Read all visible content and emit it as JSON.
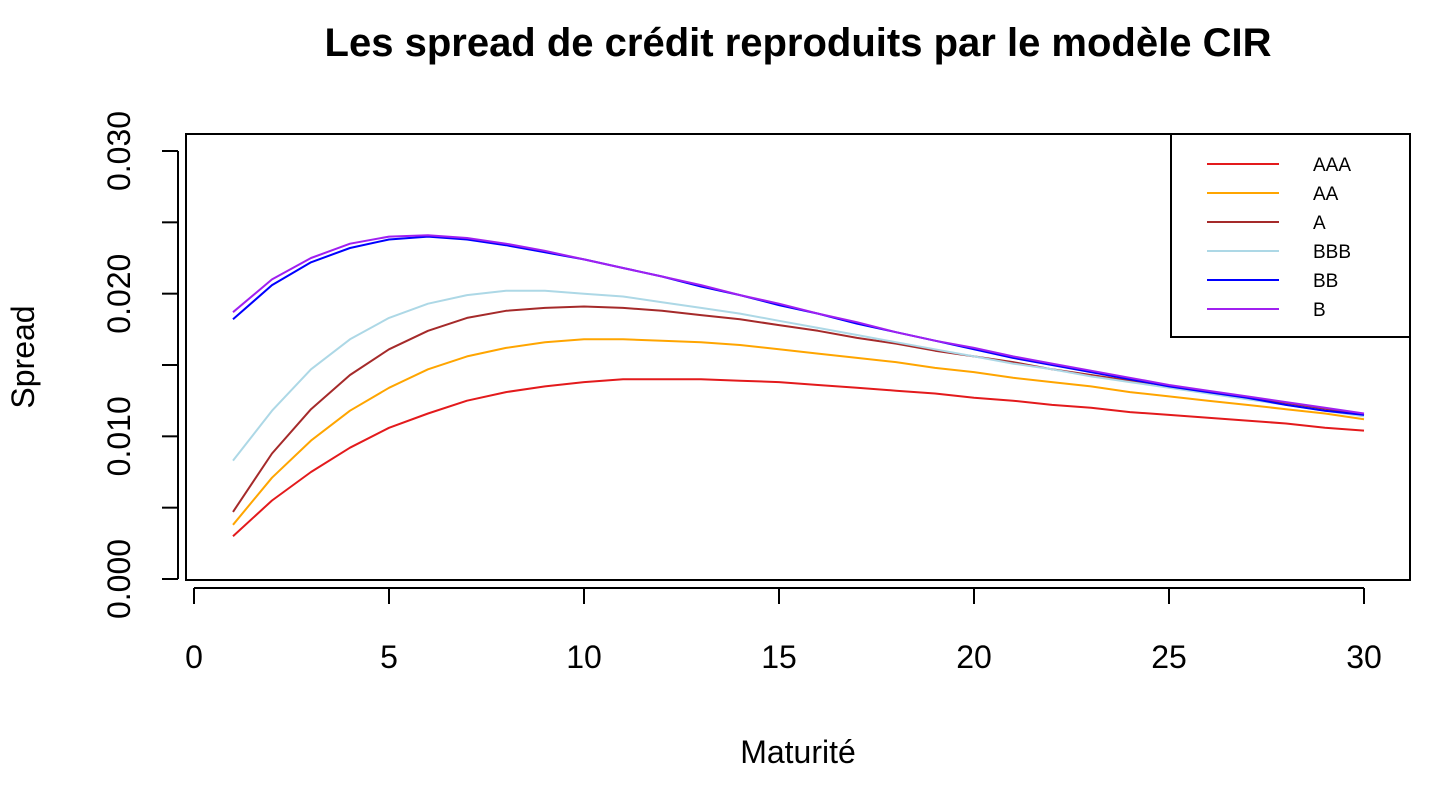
{
  "chart_data": {
    "type": "line",
    "title": "Les spread de crédit reproduits par le modèle CIR",
    "xlabel": "Maturité",
    "ylabel": "Spread",
    "xlim": [
      0,
      30
    ],
    "ylim": [
      0,
      0.03
    ],
    "x_ticks": [
      0,
      5,
      10,
      15,
      20,
      25,
      30
    ],
    "x_tick_labels": [
      "0",
      "5",
      "10",
      "15",
      "20",
      "25",
      "30"
    ],
    "y_ticks": [
      0,
      0.005,
      0.01,
      0.015,
      0.02,
      0.025,
      0.03
    ],
    "y_tick_labels": [
      "0.000",
      "",
      "0.010",
      "",
      "0.020",
      "",
      "0.030"
    ],
    "grid": false,
    "legend_position": "top-right",
    "x": [
      1,
      2,
      3,
      4,
      5,
      6,
      7,
      8,
      9,
      10,
      11,
      12,
      13,
      14,
      15,
      16,
      17,
      18,
      19,
      20,
      21,
      22,
      23,
      24,
      25,
      26,
      27,
      28,
      29,
      30
    ],
    "series": [
      {
        "name": "AAA",
        "color": "#e31a1c",
        "values": [
          0.003,
          0.0055,
          0.0075,
          0.0092,
          0.0106,
          0.0116,
          0.0125,
          0.0131,
          0.0135,
          0.0138,
          0.014,
          0.014,
          0.014,
          0.0139,
          0.0138,
          0.0136,
          0.0134,
          0.0132,
          0.013,
          0.0127,
          0.0125,
          0.0122,
          0.012,
          0.0117,
          0.0115,
          0.0113,
          0.0111,
          0.0109,
          0.0106,
          0.0104
        ]
      },
      {
        "name": "AA",
        "color": "#ffa500",
        "values": [
          0.0038,
          0.0071,
          0.0097,
          0.0118,
          0.0134,
          0.0147,
          0.0156,
          0.0162,
          0.0166,
          0.0168,
          0.0168,
          0.0167,
          0.0166,
          0.0164,
          0.0161,
          0.0158,
          0.0155,
          0.0152,
          0.0148,
          0.0145,
          0.0141,
          0.0138,
          0.0135,
          0.0131,
          0.0128,
          0.0125,
          0.0122,
          0.0119,
          0.0116,
          0.0112
        ]
      },
      {
        "name": "A",
        "color": "#a52a2a",
        "values": [
          0.0047,
          0.0088,
          0.0119,
          0.0143,
          0.0161,
          0.0174,
          0.0183,
          0.0188,
          0.019,
          0.0191,
          0.019,
          0.0188,
          0.0185,
          0.0182,
          0.0178,
          0.0174,
          0.0169,
          0.0165,
          0.016,
          0.0156,
          0.0152,
          0.0147,
          0.0143,
          0.0139,
          0.0135,
          0.0131,
          0.0127,
          0.0123,
          0.0119,
          0.0115
        ]
      },
      {
        "name": "BBB",
        "color": "#add8e6",
        "values": [
          0.0083,
          0.0118,
          0.0147,
          0.0168,
          0.0183,
          0.0193,
          0.0199,
          0.0202,
          0.0202,
          0.02,
          0.0198,
          0.0194,
          0.019,
          0.0186,
          0.0181,
          0.0176,
          0.0171,
          0.0166,
          0.0161,
          0.0156,
          0.0151,
          0.0147,
          0.0142,
          0.0138,
          0.0134,
          0.013,
          0.0126,
          0.0122,
          0.0118,
          0.0114
        ]
      },
      {
        "name": "BB",
        "color": "#0000ff",
        "values": [
          0.0182,
          0.0206,
          0.0222,
          0.0232,
          0.0238,
          0.024,
          0.0238,
          0.0234,
          0.0229,
          0.0224,
          0.0218,
          0.0212,
          0.0205,
          0.0199,
          0.0192,
          0.0186,
          0.0179,
          0.0173,
          0.0167,
          0.0161,
          0.0155,
          0.015,
          0.0145,
          0.014,
          0.0135,
          0.0131,
          0.0127,
          0.0122,
          0.0118,
          0.0115
        ]
      },
      {
        "name": "B",
        "color": "#a020f0",
        "values": [
          0.0187,
          0.021,
          0.0225,
          0.0235,
          0.024,
          0.0241,
          0.0239,
          0.0235,
          0.023,
          0.0224,
          0.0218,
          0.0212,
          0.0206,
          0.0199,
          0.0193,
          0.0186,
          0.018,
          0.0173,
          0.0167,
          0.0162,
          0.0156,
          0.0151,
          0.0146,
          0.0141,
          0.0136,
          0.0132,
          0.0128,
          0.0124,
          0.012,
          0.0116
        ]
      }
    ]
  }
}
